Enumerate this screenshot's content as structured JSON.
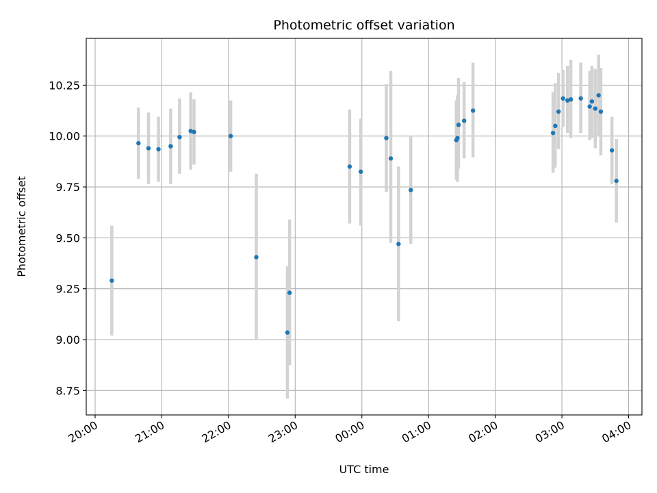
{
  "chart_data": {
    "type": "scatter",
    "title": "Photometric offset variation",
    "xlabel": "UTC time",
    "ylabel": "Photometric offset",
    "x_unit": "UTC clock time, spanning midnight (20:00 to 04:00)",
    "xlim": [
      "19:52",
      "04:12"
    ],
    "ylim": [
      8.63,
      10.48
    ],
    "x_ticks": [
      "20:00",
      "21:00",
      "22:00",
      "23:00",
      "00:00",
      "01:00",
      "02:00",
      "03:00",
      "04:00"
    ],
    "y_ticks": [
      "8.75",
      "9.00",
      "9.25",
      "9.50",
      "9.75",
      "10.00",
      "10.25"
    ],
    "grid": true,
    "colors": {
      "point": "#1f77b4",
      "errorbar": "#d3d3d3",
      "grid": "#b0b0b0"
    },
    "points": [
      {
        "t": "20:15",
        "y": 9.29,
        "lo": 9.02,
        "hi": 9.56
      },
      {
        "t": "20:39",
        "y": 9.965,
        "lo": 9.79,
        "hi": 10.14
      },
      {
        "t": "20:48",
        "y": 9.94,
        "lo": 9.765,
        "hi": 10.115
      },
      {
        "t": "20:57",
        "y": 9.935,
        "lo": 9.775,
        "hi": 10.095
      },
      {
        "t": "21:08",
        "y": 9.95,
        "lo": 9.765,
        "hi": 10.135
      },
      {
        "t": "21:16",
        "y": 9.995,
        "lo": 9.815,
        "hi": 10.185
      },
      {
        "t": "21:26",
        "y": 10.025,
        "lo": 9.835,
        "hi": 10.215
      },
      {
        "t": "21:29",
        "y": 10.02,
        "lo": 9.86,
        "hi": 10.18
      },
      {
        "t": "22:02",
        "y": 10.0,
        "lo": 9.825,
        "hi": 10.175
      },
      {
        "t": "22:25",
        "y": 9.405,
        "lo": 9.0,
        "hi": 9.815
      },
      {
        "t": "22:53",
        "y": 9.035,
        "lo": 8.71,
        "hi": 9.36
      },
      {
        "t": "22:55",
        "y": 9.23,
        "lo": 8.875,
        "hi": 9.59
      },
      {
        "t": "23:49",
        "y": 9.85,
        "lo": 9.57,
        "hi": 10.13
      },
      {
        "t": "23:59",
        "y": 9.825,
        "lo": 9.56,
        "hi": 10.085
      },
      {
        "t": "00:22",
        "y": 9.99,
        "lo": 9.725,
        "hi": 10.255
      },
      {
        "t": "00:26",
        "y": 9.89,
        "lo": 9.475,
        "hi": 10.32
      },
      {
        "t": "00:33",
        "y": 9.47,
        "lo": 9.09,
        "hi": 9.85
      },
      {
        "t": "00:44",
        "y": 9.735,
        "lo": 9.47,
        "hi": 10.0
      },
      {
        "t": "01:25",
        "y": 9.98,
        "lo": 9.785,
        "hi": 10.175
      },
      {
        "t": "01:26",
        "y": 9.99,
        "lo": 9.775,
        "hi": 10.2
      },
      {
        "t": "01:27",
        "y": 10.055,
        "lo": 9.84,
        "hi": 10.285
      },
      {
        "t": "01:32",
        "y": 10.075,
        "lo": 9.89,
        "hi": 10.265
      },
      {
        "t": "01:40",
        "y": 10.125,
        "lo": 9.895,
        "hi": 10.36
      },
      {
        "t": "02:52",
        "y": 10.015,
        "lo": 9.82,
        "hi": 10.215
      },
      {
        "t": "02:54",
        "y": 10.05,
        "lo": 9.845,
        "hi": 10.26
      },
      {
        "t": "02:57",
        "y": 10.12,
        "lo": 9.935,
        "hi": 10.31
      },
      {
        "t": "03:01",
        "y": 10.185,
        "lo": 10.045,
        "hi": 10.325
      },
      {
        "t": "03:05",
        "y": 10.175,
        "lo": 10.015,
        "hi": 10.345
      },
      {
        "t": "03:08",
        "y": 10.18,
        "lo": 9.99,
        "hi": 10.375
      },
      {
        "t": "03:17",
        "y": 10.185,
        "lo": 10.015,
        "hi": 10.36
      },
      {
        "t": "03:25",
        "y": 10.145,
        "lo": 9.98,
        "hi": 10.32
      },
      {
        "t": "03:27",
        "y": 10.17,
        "lo": 9.99,
        "hi": 10.345
      },
      {
        "t": "03:30",
        "y": 10.135,
        "lo": 9.94,
        "hi": 10.33
      },
      {
        "t": "03:33",
        "y": 10.2,
        "lo": 10.0,
        "hi": 10.4
      },
      {
        "t": "03:35",
        "y": 10.12,
        "lo": 9.905,
        "hi": 10.335
      },
      {
        "t": "03:45",
        "y": 9.93,
        "lo": 9.765,
        "hi": 10.095
      },
      {
        "t": "03:49",
        "y": 9.78,
        "lo": 9.575,
        "hi": 9.985
      }
    ]
  }
}
